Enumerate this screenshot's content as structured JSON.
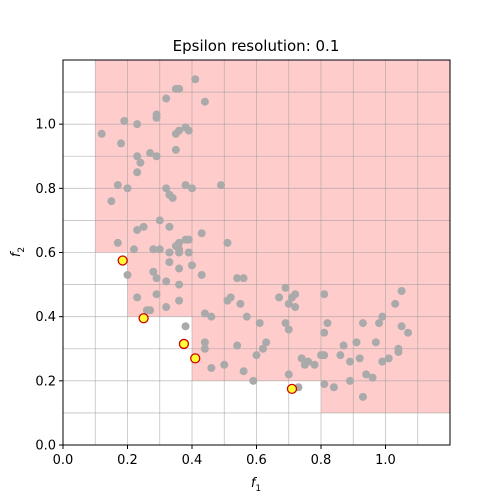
{
  "chart_data": {
    "type": "scatter",
    "title": "Epsilon resolution: 0.1",
    "xlabel": "f",
    "xlabel_sub": "1",
    "ylabel": "f",
    "ylabel_sub": "2",
    "xlim": [
      0.0,
      1.2
    ],
    "ylim": [
      0.0,
      1.2
    ],
    "epsilon": 0.1,
    "grid": true,
    "x_ticks": [
      "0.0",
      "0.2",
      "0.4",
      "0.6",
      "0.8",
      "1.0"
    ],
    "y_ticks": [
      "0.0",
      "0.2",
      "0.4",
      "0.6",
      "0.8",
      "1.0"
    ],
    "colors": {
      "dominated_region": "#ffcccc",
      "grid_line": "#999999",
      "points": "#aaaaaa",
      "pareto_fill": "#ffff33",
      "pareto_edge": "#cc0000"
    },
    "dominated_regions": [
      {
        "x": 0.1,
        "y": 0.6
      },
      {
        "x": 0.2,
        "y": 0.5
      },
      {
        "x": 0.2,
        "y": 0.4
      },
      {
        "x": 0.3,
        "y": 0.4
      },
      {
        "x": 0.4,
        "y": 0.3
      },
      {
        "x": 0.4,
        "y": 0.2
      },
      {
        "x": 0.6,
        "y": 0.2
      },
      {
        "x": 0.7,
        "y": 0.2
      },
      {
        "x": 0.8,
        "y": 0.1
      }
    ],
    "pareto_points": [
      {
        "x": 0.185,
        "y": 0.575
      },
      {
        "x": 0.25,
        "y": 0.395
      },
      {
        "x": 0.375,
        "y": 0.315
      },
      {
        "x": 0.41,
        "y": 0.27
      },
      {
        "x": 0.71,
        "y": 0.175
      }
    ],
    "points": [
      [
        0.12,
        0.97
      ],
      [
        0.19,
        1.01
      ],
      [
        0.23,
        1.0
      ],
      [
        0.29,
        1.02
      ],
      [
        0.29,
        1.03
      ],
      [
        0.32,
        1.08
      ],
      [
        0.35,
        1.11
      ],
      [
        0.36,
        1.11
      ],
      [
        0.41,
        1.14
      ],
      [
        0.44,
        1.07
      ],
      [
        0.18,
        0.94
      ],
      [
        0.23,
        0.9
      ],
      [
        0.24,
        0.88
      ],
      [
        0.27,
        0.91
      ],
      [
        0.29,
        0.9
      ],
      [
        0.35,
        0.92
      ],
      [
        0.35,
        0.97
      ],
      [
        0.36,
        0.98
      ],
      [
        0.38,
        0.99
      ],
      [
        0.39,
        0.98
      ],
      [
        0.15,
        0.76
      ],
      [
        0.17,
        0.81
      ],
      [
        0.2,
        0.8
      ],
      [
        0.23,
        0.85
      ],
      [
        0.32,
        0.8
      ],
      [
        0.33,
        0.78
      ],
      [
        0.34,
        0.77
      ],
      [
        0.38,
        0.81
      ],
      [
        0.4,
        0.8
      ],
      [
        0.49,
        0.81
      ],
      [
        0.23,
        0.67
      ],
      [
        0.25,
        0.68
      ],
      [
        0.28,
        0.61
      ],
      [
        0.3,
        0.7
      ],
      [
        0.3,
        0.61
      ],
      [
        0.33,
        0.68
      ],
      [
        0.35,
        0.62
      ],
      [
        0.36,
        0.63
      ],
      [
        0.38,
        0.64
      ],
      [
        0.39,
        0.64
      ],
      [
        0.43,
        0.66
      ],
      [
        0.51,
        0.63
      ],
      [
        0.17,
        0.63
      ],
      [
        0.2,
        0.53
      ],
      [
        0.22,
        0.61
      ],
      [
        0.33,
        0.6
      ],
      [
        0.33,
        0.57
      ],
      [
        0.36,
        0.6
      ],
      [
        0.36,
        0.61
      ],
      [
        0.39,
        0.6
      ],
      [
        0.28,
        0.54
      ],
      [
        0.29,
        0.52
      ],
      [
        0.32,
        0.51
      ],
      [
        0.36,
        0.55
      ],
      [
        0.36,
        0.5
      ],
      [
        0.4,
        0.56
      ],
      [
        0.43,
        0.53
      ],
      [
        0.23,
        0.46
      ],
      [
        0.26,
        0.42
      ],
      [
        0.27,
        0.42
      ],
      [
        0.29,
        0.47
      ],
      [
        0.32,
        0.43
      ],
      [
        0.36,
        0.45
      ],
      [
        0.44,
        0.41
      ],
      [
        0.46,
        0.4
      ],
      [
        0.51,
        0.45
      ],
      [
        0.52,
        0.46
      ],
      [
        0.54,
        0.52
      ],
      [
        0.55,
        0.44
      ],
      [
        0.56,
        0.52
      ],
      [
        0.57,
        0.4
      ],
      [
        0.38,
        0.37
      ],
      [
        0.44,
        0.32
      ],
      [
        0.44,
        0.3
      ],
      [
        0.46,
        0.24
      ],
      [
        0.5,
        0.25
      ],
      [
        0.54,
        0.31
      ],
      [
        0.56,
        0.23
      ],
      [
        0.59,
        0.2
      ],
      [
        0.6,
        0.28
      ],
      [
        0.61,
        0.38
      ],
      [
        0.62,
        0.3
      ],
      [
        0.63,
        0.32
      ],
      [
        0.67,
        0.46
      ],
      [
        0.69,
        0.38
      ],
      [
        0.69,
        0.49
      ],
      [
        0.7,
        0.36
      ],
      [
        0.7,
        0.44
      ],
      [
        0.71,
        0.46
      ],
      [
        0.72,
        0.47
      ],
      [
        0.72,
        0.43
      ],
      [
        0.7,
        0.22
      ],
      [
        0.73,
        0.18
      ],
      [
        0.74,
        0.27
      ],
      [
        0.75,
        0.25
      ],
      [
        0.76,
        0.26
      ],
      [
        0.78,
        0.25
      ],
      [
        0.8,
        0.28
      ],
      [
        0.81,
        0.28
      ],
      [
        0.81,
        0.47
      ],
      [
        0.81,
        0.35
      ],
      [
        0.82,
        0.38
      ],
      [
        0.81,
        0.19
      ],
      [
        0.84,
        0.18
      ],
      [
        0.86,
        0.28
      ],
      [
        0.87,
        0.31
      ],
      [
        0.89,
        0.26
      ],
      [
        0.89,
        0.2
      ],
      [
        0.91,
        0.32
      ],
      [
        0.92,
        0.27
      ],
      [
        0.93,
        0.15
      ],
      [
        0.93,
        0.38
      ],
      [
        0.94,
        0.22
      ],
      [
        0.96,
        0.21
      ],
      [
        0.97,
        0.32
      ],
      [
        0.98,
        0.38
      ],
      [
        0.99,
        0.4
      ],
      [
        0.99,
        0.26
      ],
      [
        1.01,
        0.27
      ],
      [
        1.03,
        0.44
      ],
      [
        1.04,
        0.3
      ],
      [
        1.04,
        0.29
      ],
      [
        1.05,
        0.37
      ],
      [
        1.05,
        0.48
      ],
      [
        1.07,
        0.35
      ]
    ]
  }
}
